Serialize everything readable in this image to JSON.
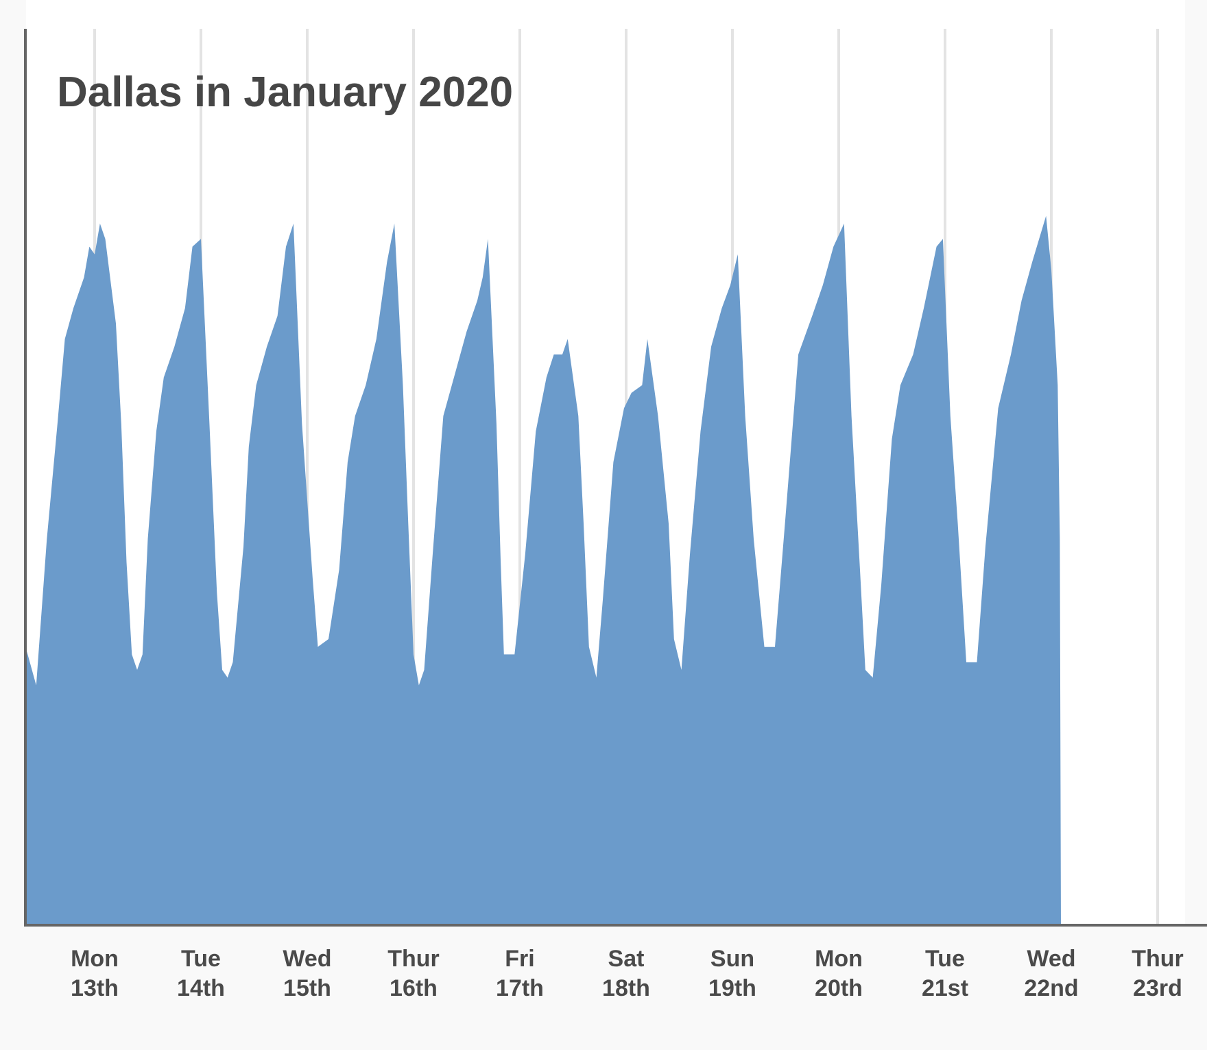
{
  "chart_data": {
    "type": "area",
    "title": "Dallas in January 2020",
    "xlabel": "",
    "ylabel": "",
    "grid": "vertical lines at each day",
    "fill_color": "#6b9bcb",
    "x_ticks": [
      {
        "day": "Mon",
        "date": "13th"
      },
      {
        "day": "Tue",
        "date": "14th"
      },
      {
        "day": "Wed",
        "date": "15th"
      },
      {
        "day": "Thur",
        "date": "16th"
      },
      {
        "day": "Fri",
        "date": "17th"
      },
      {
        "day": "Sat",
        "date": "18th"
      },
      {
        "day": "Sun",
        "date": "19th"
      },
      {
        "day": "Mon",
        "date": "20th"
      },
      {
        "day": "Tue",
        "date": "21st"
      },
      {
        "day": "Wed",
        "date": "22nd"
      },
      {
        "day": "Thur",
        "date": "23rd"
      }
    ],
    "x_unit": "days from start of Jan 12 (tick i = midnight of labelled day)",
    "y_range_relative": [
      0,
      100
    ],
    "series": [
      {
        "values": [
          [
            -0.65,
            36
          ],
          [
            -0.55,
            31
          ],
          [
            -0.45,
            50
          ],
          [
            -0.35,
            65
          ],
          [
            -0.28,
            76
          ],
          [
            -0.2,
            80
          ],
          [
            -0.1,
            84
          ],
          [
            -0.05,
            88
          ],
          [
            0.0,
            87
          ],
          [
            0.05,
            91
          ],
          [
            0.1,
            89
          ],
          [
            0.2,
            78
          ],
          [
            0.25,
            65
          ],
          [
            0.3,
            47
          ],
          [
            0.35,
            35
          ],
          [
            0.4,
            33
          ],
          [
            0.45,
            35
          ],
          [
            0.5,
            50
          ],
          [
            0.58,
            64
          ],
          [
            0.65,
            71
          ],
          [
            0.75,
            75
          ],
          [
            0.85,
            80
          ],
          [
            0.92,
            88
          ],
          [
            1.0,
            89
          ],
          [
            1.08,
            65
          ],
          [
            1.15,
            43
          ],
          [
            1.2,
            33
          ],
          [
            1.25,
            32
          ],
          [
            1.3,
            34
          ],
          [
            1.4,
            49
          ],
          [
            1.45,
            62
          ],
          [
            1.52,
            70
          ],
          [
            1.62,
            75
          ],
          [
            1.72,
            79
          ],
          [
            1.8,
            88
          ],
          [
            1.87,
            91
          ],
          [
            1.95,
            65
          ],
          [
            2.05,
            45
          ],
          [
            2.1,
            36
          ],
          [
            2.2,
            37
          ],
          [
            2.3,
            46
          ],
          [
            2.38,
            60
          ],
          [
            2.45,
            66
          ],
          [
            2.55,
            70
          ],
          [
            2.65,
            76
          ],
          [
            2.75,
            86
          ],
          [
            2.82,
            91
          ],
          [
            2.9,
            70
          ],
          [
            2.95,
            52
          ],
          [
            3.0,
            35
          ],
          [
            3.05,
            31
          ],
          [
            3.1,
            33
          ],
          [
            3.18,
            48
          ],
          [
            3.28,
            66
          ],
          [
            3.4,
            72
          ],
          [
            3.5,
            77
          ],
          [
            3.6,
            81
          ],
          [
            3.65,
            84
          ],
          [
            3.7,
            89
          ],
          [
            3.78,
            65
          ],
          [
            3.82,
            47
          ],
          [
            3.85,
            35
          ],
          [
            3.95,
            35
          ],
          [
            4.05,
            48
          ],
          [
            4.15,
            64
          ],
          [
            4.25,
            71
          ],
          [
            4.32,
            74
          ],
          [
            4.4,
            74
          ],
          [
            4.45,
            76
          ],
          [
            4.55,
            66
          ],
          [
            4.6,
            52
          ],
          [
            4.65,
            36
          ],
          [
            4.72,
            32
          ],
          [
            4.78,
            42
          ],
          [
            4.88,
            60
          ],
          [
            4.98,
            67
          ],
          [
            5.05,
            69
          ],
          [
            5.15,
            70
          ],
          [
            5.2,
            76
          ],
          [
            5.3,
            66
          ],
          [
            5.4,
            52
          ],
          [
            5.45,
            37
          ],
          [
            5.52,
            33
          ],
          [
            5.6,
            48
          ],
          [
            5.7,
            64
          ],
          [
            5.8,
            75
          ],
          [
            5.9,
            80
          ],
          [
            5.98,
            83
          ],
          [
            6.05,
            87
          ],
          [
            6.12,
            66
          ],
          [
            6.2,
            50
          ],
          [
            6.3,
            36
          ],
          [
            6.4,
            36
          ],
          [
            6.5,
            53
          ],
          [
            6.62,
            74
          ],
          [
            6.75,
            79
          ],
          [
            6.85,
            83
          ],
          [
            6.95,
            88
          ],
          [
            7.05,
            91
          ],
          [
            7.12,
            66
          ],
          [
            7.2,
            46
          ],
          [
            7.25,
            33
          ],
          [
            7.32,
            32
          ],
          [
            7.4,
            44
          ],
          [
            7.5,
            63
          ],
          [
            7.58,
            70
          ],
          [
            7.7,
            74
          ],
          [
            7.8,
            80
          ],
          [
            7.92,
            88
          ],
          [
            7.98,
            89
          ],
          [
            8.05,
            66
          ],
          [
            8.12,
            52
          ],
          [
            8.2,
            34
          ],
          [
            8.3,
            34
          ],
          [
            8.38,
            49
          ],
          [
            8.5,
            67
          ],
          [
            8.62,
            74
          ],
          [
            8.72,
            81
          ],
          [
            8.82,
            86
          ],
          [
            8.95,
            92
          ],
          [
            9.0,
            85
          ],
          [
            9.06,
            70
          ],
          [
            9.08,
            50
          ],
          [
            9.09,
            0
          ]
        ]
      }
    ]
  }
}
